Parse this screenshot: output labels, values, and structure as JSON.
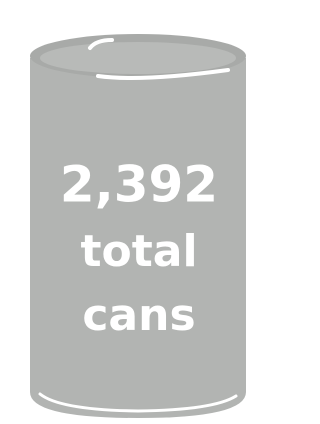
{
  "headline": "2,392",
  "line1": "total",
  "line2": "cans"
}
